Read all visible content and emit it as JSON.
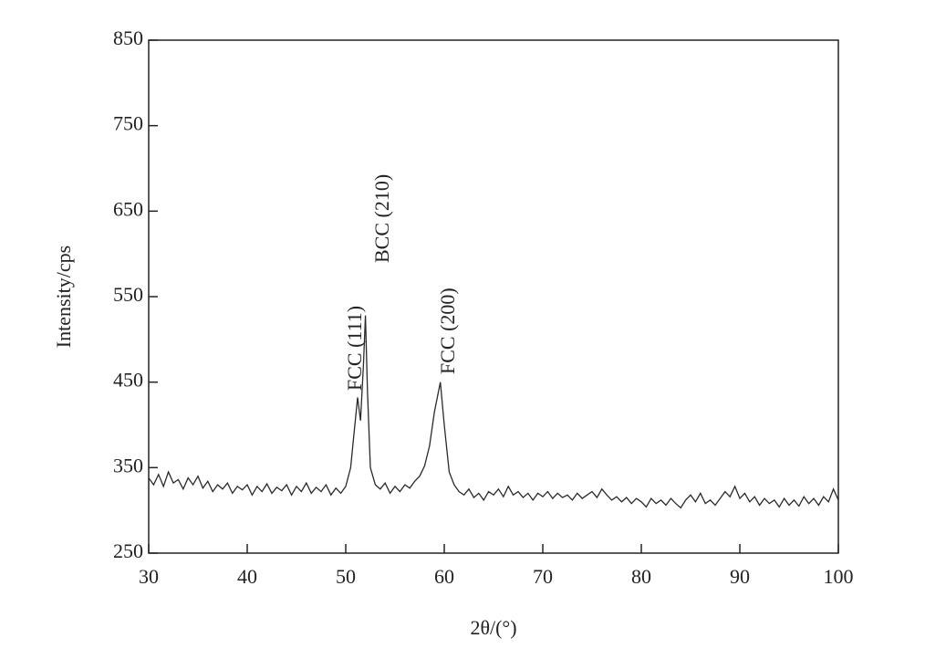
{
  "chart_data": {
    "type": "line",
    "xlabel": "2θ/(°)",
    "ylabel": "Intensity/cps",
    "annotations": [
      "FCC (111)",
      "BCC (210)",
      "FCC (200)"
    ],
    "x": [
      30,
      30.5,
      31,
      31.5,
      32,
      32.5,
      33,
      33.5,
      34,
      34.5,
      35,
      35.5,
      36,
      36.5,
      37,
      37.5,
      38,
      38.5,
      39,
      39.5,
      40,
      40.5,
      41,
      41.5,
      42,
      42.5,
      43,
      43.5,
      44,
      44.5,
      45,
      45.5,
      46,
      46.5,
      47,
      47.5,
      48,
      48.5,
      49,
      49.5,
      50,
      50.5,
      50.8,
      51.2,
      51.5,
      51.8,
      52,
      52.2,
      52.5,
      53,
      53.5,
      54,
      54.5,
      55,
      55.5,
      56,
      56.5,
      57,
      57.5,
      58,
      58.5,
      59,
      59.6,
      60,
      60.5,
      61,
      61.5,
      62,
      62.5,
      63,
      63.5,
      64,
      64.5,
      65,
      65.5,
      66,
      66.5,
      67,
      67.5,
      68,
      68.5,
      69,
      69.5,
      70,
      70.5,
      71,
      71.5,
      72,
      72.5,
      73,
      73.5,
      74,
      74.5,
      75,
      75.5,
      76,
      76.5,
      77,
      77.5,
      78,
      78.5,
      79,
      79.5,
      80,
      80.5,
      81,
      81.5,
      82,
      82.5,
      83,
      83.5,
      84,
      84.5,
      85,
      85.5,
      86,
      86.5,
      87,
      87.5,
      88,
      88.5,
      89,
      89.5,
      90,
      90.5,
      91,
      91.5,
      92,
      92.5,
      93,
      93.5,
      94,
      94.5,
      95,
      95.5,
      96,
      96.5,
      97,
      97.5,
      98,
      98.5,
      99,
      99.5,
      100
    ],
    "series": [
      {
        "color": "#2a2a2a",
        "values": [
          338,
          330,
          342,
          328,
          345,
          332,
          336,
          325,
          338,
          330,
          340,
          326,
          334,
          322,
          330,
          325,
          332,
          320,
          328,
          324,
          330,
          318,
          328,
          322,
          331,
          320,
          327,
          323,
          330,
          318,
          328,
          322,
          332,
          320,
          327,
          322,
          330,
          318,
          326,
          320,
          328,
          350,
          385,
          432,
          405,
          470,
          528,
          440,
          350,
          330,
          325,
          332,
          320,
          328,
          322,
          330,
          326,
          334,
          340,
          352,
          375,
          415,
          450,
          400,
          345,
          330,
          322,
          318,
          325,
          315,
          320,
          312,
          322,
          318,
          325,
          316,
          328,
          318,
          322,
          315,
          320,
          312,
          320,
          316,
          322,
          314,
          320,
          315,
          318,
          312,
          320,
          314,
          318,
          322,
          315,
          325,
          318,
          312,
          316,
          310,
          315,
          308,
          314,
          310,
          304,
          314,
          308,
          312,
          306,
          314,
          308,
          303,
          312,
          318,
          310,
          320,
          308,
          312,
          306,
          314,
          322,
          316,
          328,
          314,
          320,
          310,
          316,
          306,
          314,
          308,
          312,
          304,
          314,
          306,
          312,
          305,
          316,
          308,
          314,
          306,
          316,
          310,
          325,
          312
        ]
      }
    ],
    "xlim": [
      30,
      100
    ],
    "ylim": [
      250,
      850
    ],
    "xticks": [
      30,
      40,
      50,
      60,
      70,
      80,
      90,
      100
    ],
    "yticks": [
      250,
      350,
      450,
      550,
      650,
      750,
      850
    ]
  }
}
